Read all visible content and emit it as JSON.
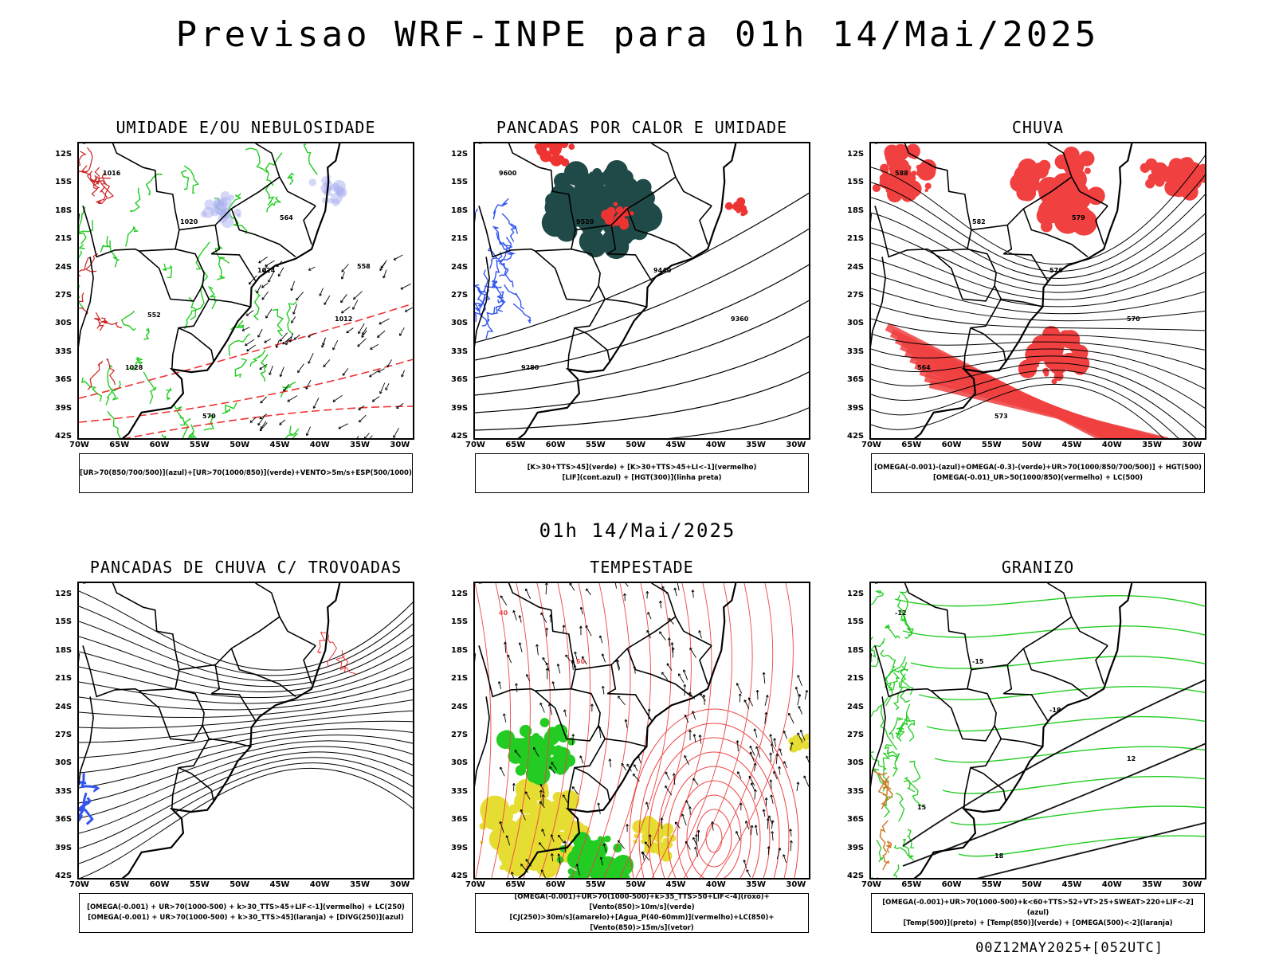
{
  "header": {
    "title": "Previsao WRF-INPE  para 01h 14/Mai/2025"
  },
  "mid_title": "01h 14/Mai/2025",
  "footer": "00Z12MAY2025+[052UTC]",
  "axes": {
    "lat_labels": [
      "12S",
      "15S",
      "18S",
      "21S",
      "24S",
      "27S",
      "30S",
      "33S",
      "36S",
      "39S",
      "42S"
    ],
    "lon_labels": [
      "70W",
      "65W",
      "60W",
      "55W",
      "50W",
      "45W",
      "40W",
      "35W",
      "30W"
    ]
  },
  "panels": [
    {
      "id": "umidade",
      "title": "UMIDADE E/OU NEBULOSIDADE",
      "legend": [
        "[UR>70(850/700/500)](azul)+[UR>70(1000/850)](verde)+VENTO>5m/s+ESP(500/1000)"
      ],
      "contour_labels": [
        "1016",
        "1020",
        "1024",
        "1012",
        "1028",
        "570",
        "564",
        "558",
        "552"
      ],
      "colors": {
        "green": "#22cc22",
        "red": "#ee3333",
        "blue": "#aab0f0"
      }
    },
    {
      "id": "pancadas-calor",
      "title": "PANCADAS POR CALOR E UMIDADE",
      "legend": [
        "[K>30+TTS>45](verde) + [K>30+TTS>45+LI<-1](vermelho)",
        "[LIF](cont.azul) + [HGT(300)](linha preta)"
      ],
      "contour_labels": [
        "9600",
        "9520",
        "9440",
        "9360",
        "9280"
      ],
      "colors": {
        "teal": "#1f4a48",
        "red": "#ee3333",
        "blue": "#3355ee"
      }
    },
    {
      "id": "chuva",
      "title": "CHUVA",
      "legend": [
        "[OMEGA(-0.001)-(azul)+OMEGA(-0.3)-(verde)+UR>70(1000/850/700/500)] + HGT(500)",
        "[OMEGA(-0.01)_UR>50(1000/850)(vermelho) + LC(500)"
      ],
      "contour_labels": [
        "588",
        "582",
        "576",
        "570",
        "564",
        "573",
        "579"
      ],
      "colors": {
        "red": "#f04040",
        "blue": "#3355ee"
      }
    },
    {
      "id": "trovoadas",
      "title": "PANCADAS DE CHUVA C/ TROVOADAS",
      "legend": [
        "[OMEGA(-0.001) + UR>70(1000-500) + k>30_TTS>45+LIF<-1](vermelho) + LC(250)",
        "[OMEGA(-0.001) + UR>70(1000-500) + k>30_TTS>45](laranja) + [DIVG(250)](azul)"
      ],
      "contour_labels": [],
      "colors": {
        "blue": "#3355ee",
        "red": "#ee3333"
      }
    },
    {
      "id": "tempestade",
      "title": "TEMPESTADE",
      "legend": [
        "[OMEGA(-0.001)+UR>70(1000-500)+k>35_TTS>50+LIF<-4](roxo)+[Vento(850)>10m/s](verde)",
        "[CJ(250)>30m/s](amarelo)+[Agua_P(40-60mm)](vermelho)+LC(850)+[Vento(850)>15m/s](vetor)"
      ],
      "contour_labels": [
        "40",
        "50"
      ],
      "colors": {
        "yellow": "#e6dd33",
        "green": "#22cc22",
        "red": "#ee4444"
      }
    },
    {
      "id": "granizo",
      "title": "GRANIZO",
      "legend": [
        "[OMEGA(-0.001)+UR>70(1000-500)+k<60+TTS>52+VT>25+SWEAT>220+LIF<-2](azul)",
        "[Temp(500)](preto) + [Temp(850)](verde) + [OMEGA(500)<-2](laranja)"
      ],
      "contour_labels": [
        "-12",
        "-15",
        "-18",
        "12",
        "15",
        "18"
      ],
      "colors": {
        "green": "#22cc22",
        "orange": "#cc7722"
      }
    }
  ]
}
